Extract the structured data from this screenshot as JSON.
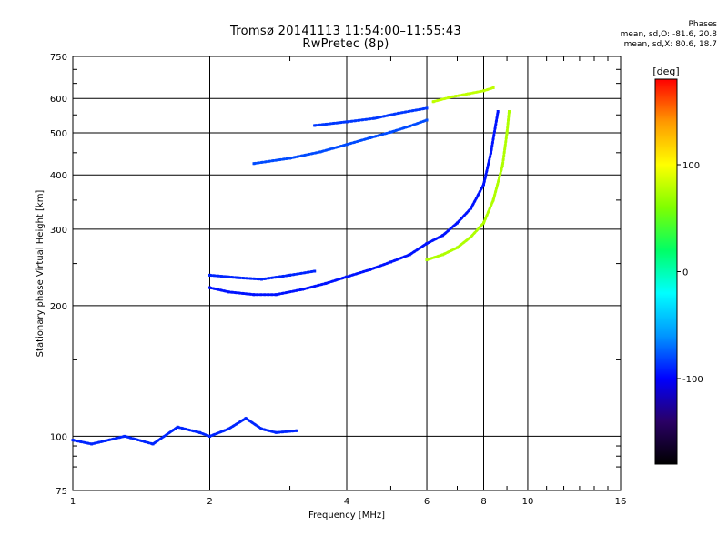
{
  "header": {
    "title_line1": "Tromsø 20141113 11:54:00–11:55:43",
    "title_line2": "RwPretec (8p)"
  },
  "phases": {
    "title": "Phases",
    "o_line": "mean, sd,O: -81.6, 20.8",
    "x_line": "mean, sd,X: 80.6, 18.7"
  },
  "chart_data": {
    "type": "scatter",
    "xlabel": "Frequency [MHz]",
    "ylabel": "Stationary phase Virtual Height [km]",
    "xscale": "log",
    "yscale": "log",
    "xlim": [
      1,
      16
    ],
    "ylim": [
      75,
      750
    ],
    "xticks": [
      1,
      2,
      4,
      6,
      8,
      10,
      16
    ],
    "yticks": [
      75,
      100,
      200,
      300,
      400,
      500,
      600,
      750
    ],
    "grid": true,
    "colorbar": {
      "label": "[deg]",
      "range": [
        -180,
        180
      ],
      "ticks": [
        100,
        0,
        -100
      ]
    },
    "traces": [
      {
        "x": [
          1.0,
          1.1,
          1.3,
          1.5,
          1.7,
          1.9,
          2.0,
          2.2,
          2.4,
          2.6,
          2.8,
          3.1
        ],
        "y": [
          98,
          96,
          100,
          96,
          105,
          102,
          100,
          104,
          110,
          104,
          102,
          103
        ],
        "phase": -90
      },
      {
        "x": [
          2.5,
          3.0,
          3.5,
          4.0,
          4.5,
          5.0,
          5.5,
          6.0
        ],
        "y": [
          425,
          437,
          452,
          470,
          487,
          502,
          518,
          535
        ],
        "phase": -80
      },
      {
        "x": [
          3.4,
          4.0,
          4.6,
          5.2,
          6.0
        ],
        "y": [
          520,
          530,
          540,
          555,
          570
        ],
        "phase": -85
      },
      {
        "x": [
          2.0,
          2.2,
          2.5,
          2.8,
          3.2,
          3.6,
          4.0,
          4.5,
          5.0,
          5.5,
          6.0,
          6.5,
          7.0,
          7.5,
          8.0,
          8.3,
          8.6
        ],
        "y": [
          220,
          215,
          212,
          212,
          218,
          225,
          233,
          242,
          252,
          262,
          278,
          290,
          310,
          335,
          380,
          450,
          560
        ],
        "phase": -95
      },
      {
        "x": [
          2.0,
          2.3,
          2.6,
          3.0,
          3.4
        ],
        "y": [
          235,
          232,
          230,
          235,
          240
        ],
        "phase": -90
      },
      {
        "x": [
          6.0,
          6.5,
          7.0,
          7.5,
          8.0,
          8.4,
          8.8,
          9.0,
          9.1
        ],
        "y": [
          255,
          262,
          272,
          288,
          310,
          350,
          420,
          500,
          560
        ],
        "phase": 75
      },
      {
        "x": [
          6.2,
          6.8,
          7.4,
          8.0,
          8.4
        ],
        "y": [
          590,
          605,
          615,
          625,
          635
        ],
        "phase": 80
      }
    ]
  },
  "colors": {
    "colormap": [
      "#000000",
      "#2a0066",
      "#0000ff",
      "#0095ff",
      "#00ffff",
      "#00ff66",
      "#7fff00",
      "#ffff00",
      "#ff9900",
      "#ff0000"
    ]
  }
}
